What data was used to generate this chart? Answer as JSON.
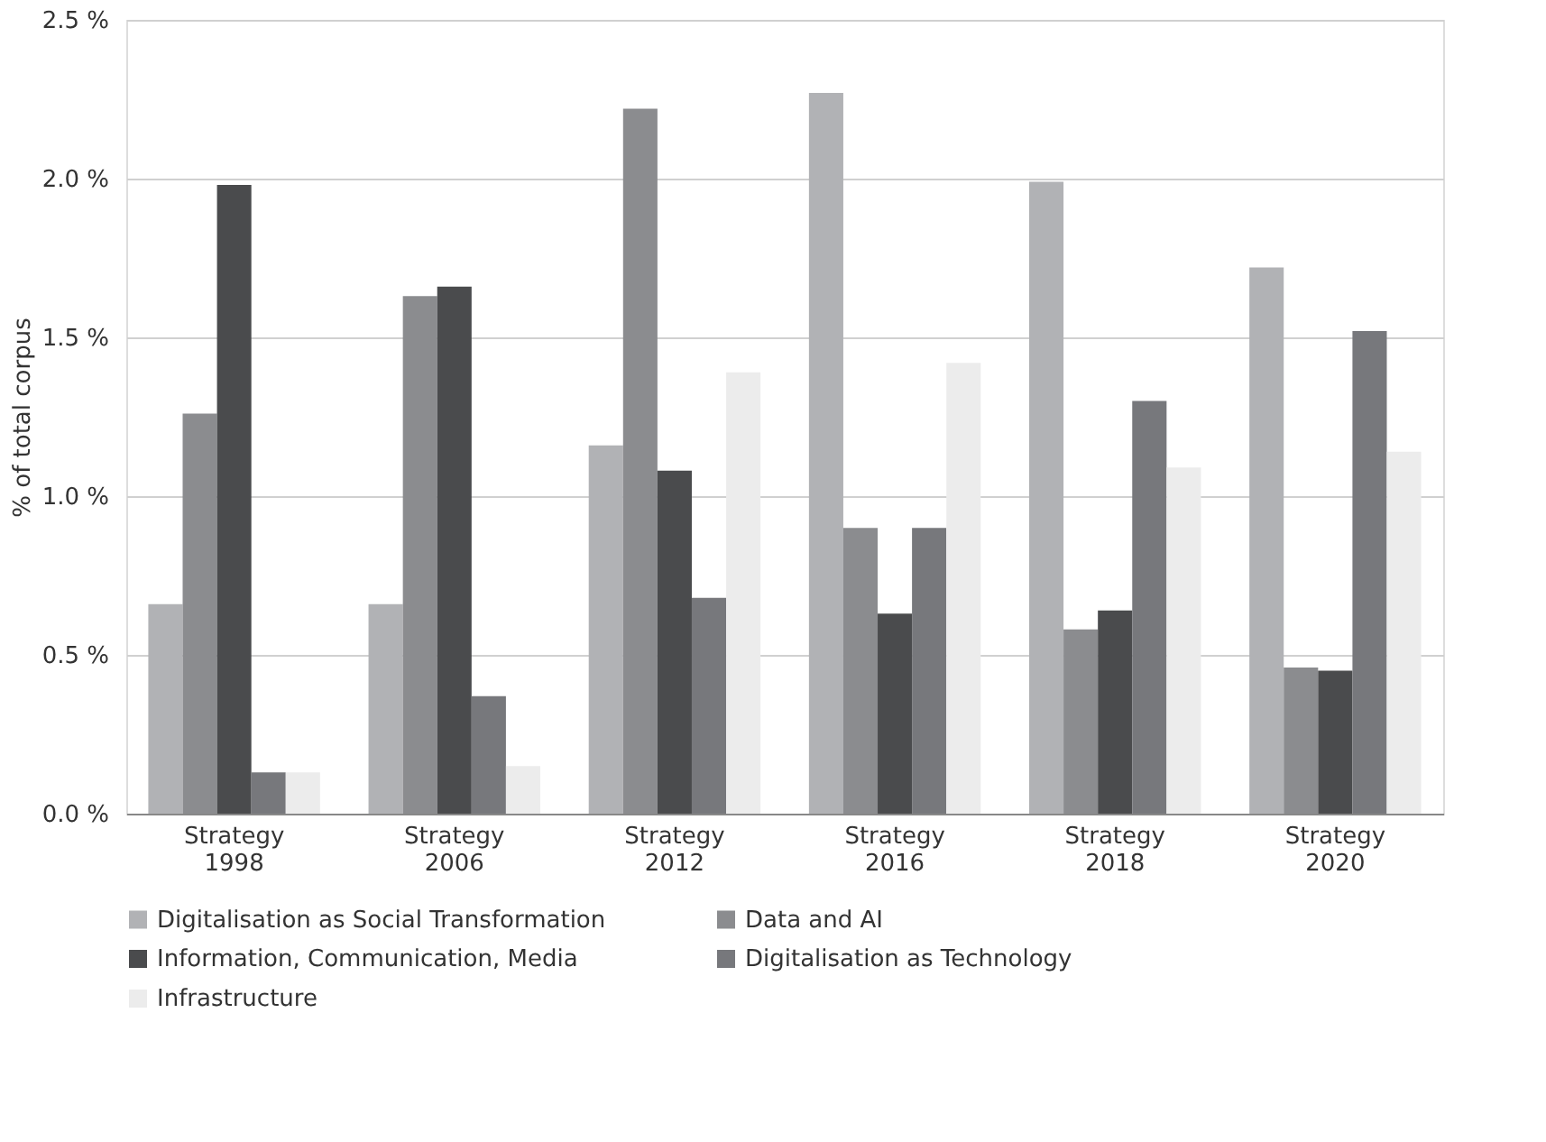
{
  "chart_data": {
    "type": "bar",
    "ylabel": "% of total corpus",
    "categories": [
      "Strategy 1998",
      "Strategy 2006",
      "Strategy 2012",
      "Strategy 2016",
      "Strategy 2018",
      "Strategy 2020"
    ],
    "series": [
      {
        "name": "Digitalisation as Social Transformation",
        "color": "#b1b2b5",
        "values": [
          0.66,
          0.66,
          1.16,
          2.27,
          1.99,
          1.72
        ]
      },
      {
        "name": "Data and AI",
        "color": "#8b8c8f",
        "values": [
          1.26,
          1.63,
          2.22,
          0.9,
          0.58,
          0.46
        ]
      },
      {
        "name": "Information, Communication, Media",
        "color": "#4a4b4d",
        "values": [
          1.98,
          1.66,
          1.08,
          0.63,
          0.64,
          0.45
        ]
      },
      {
        "name": "Digitalisation as Technology",
        "color": "#77787c",
        "values": [
          0.13,
          0.37,
          0.68,
          0.9,
          1.3,
          1.52
        ]
      },
      {
        "name": "Infrastructure",
        "color": "#ececec",
        "values": [
          0.13,
          0.15,
          1.39,
          1.42,
          1.09,
          1.14
        ]
      }
    ],
    "ylim": [
      0,
      2.5
    ],
    "yticks": [
      {
        "value": 0,
        "label": "0.0 %"
      },
      {
        "value": 0.5,
        "label": "0.5 %"
      },
      {
        "value": 1,
        "label": "1.0 %"
      },
      {
        "value": 1.5,
        "label": "1.5 %"
      },
      {
        "value": 2,
        "label": "2.0 %"
      },
      {
        "value": 2.5,
        "label": "2.5 %"
      }
    ],
    "grid": "y",
    "legend": "bottom"
  }
}
